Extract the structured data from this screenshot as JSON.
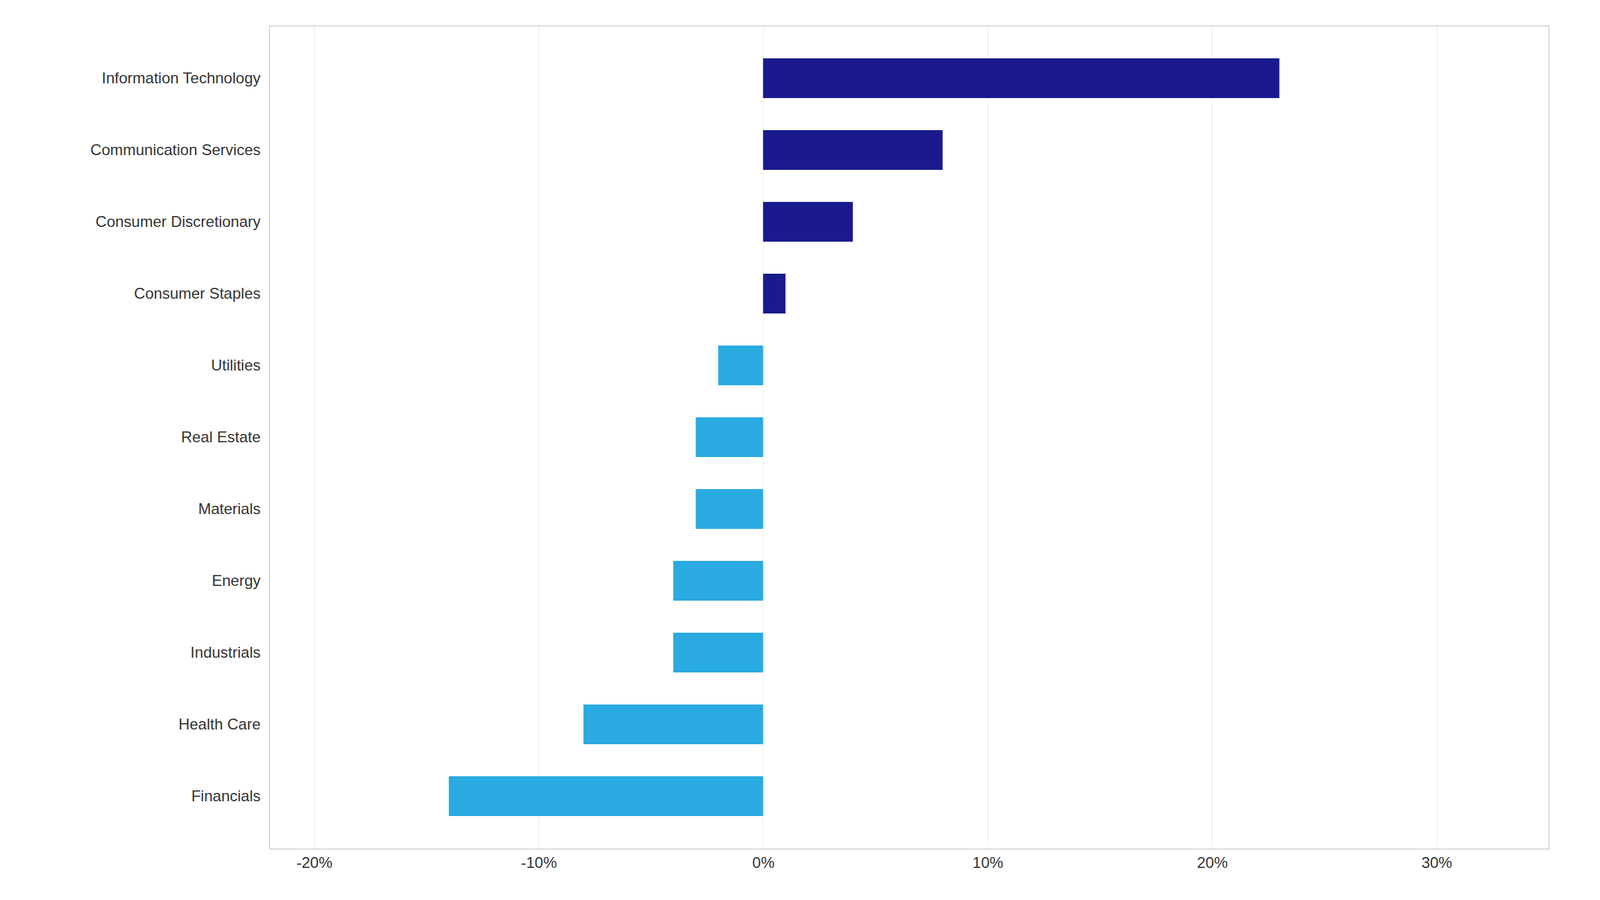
{
  "chart_data": {
    "type": "bar",
    "orientation": "horizontal",
    "categories": [
      "Information Technology",
      "Communication Services",
      "Consumer Discretionary",
      "Consumer Staples",
      "Utilities",
      "Real Estate",
      "Materials",
      "Energy",
      "Industrials",
      "Health Care",
      "Financials"
    ],
    "values": [
      23,
      8,
      4,
      1,
      -2,
      -3,
      -3,
      -4,
      -4,
      -8,
      -14
    ],
    "colors": [
      "#1a1a8c",
      "#1a1a8c",
      "#1a1a8c",
      "#1a1a8c",
      "#29aae1",
      "#29aae1",
      "#29aae1",
      "#29aae1",
      "#29aae1",
      "#29aae1",
      "#29aae1"
    ],
    "xlim": [
      -22,
      35
    ],
    "xticks": [
      {
        "value": -20,
        "label": "-20%"
      },
      {
        "value": -10,
        "label": "-10%"
      },
      {
        "value": 0,
        "label": "0%"
      },
      {
        "value": 10,
        "label": "10%"
      },
      {
        "value": 20,
        "label": "20%"
      },
      {
        "value": 30,
        "label": "30%"
      }
    ],
    "grid": true
  }
}
